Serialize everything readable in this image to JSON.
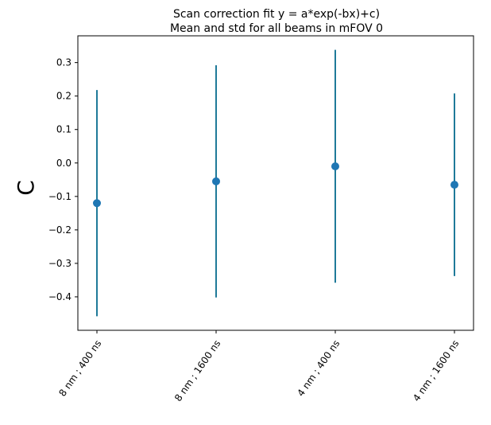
{
  "colors": {
    "series": "#1f77b4",
    "errorbar": "#1f7a99",
    "axis": "#000000",
    "background": "#ffffff"
  },
  "chart_data": {
    "type": "scatter",
    "title_line1": "Scan correction fit y = a*exp(-bx)+c)",
    "title_line2": "Mean and std for all beams in mFOV 0",
    "xlabel": "",
    "ylabel": "C",
    "categories": [
      "8 nm ; 400 ns",
      "8 nm ; 1600 ns",
      "4 nm ; 400 ns",
      "4 nm ; 1600 ns"
    ],
    "values": [
      -0.12,
      -0.055,
      -0.01,
      -0.065
    ],
    "errors": [
      0.338,
      0.347,
      0.348,
      0.273
    ],
    "ylim": [
      -0.5,
      0.38
    ],
    "yticks": [
      -0.4,
      -0.3,
      -0.2,
      -0.1,
      0.0,
      0.1,
      0.2,
      0.3
    ],
    "ytick_labels": [
      "−0.4",
      "−0.3",
      "−0.2",
      "−0.1",
      "0.0",
      "0.1",
      "0.2",
      "0.3"
    ],
    "grid": false,
    "legend": "none"
  }
}
